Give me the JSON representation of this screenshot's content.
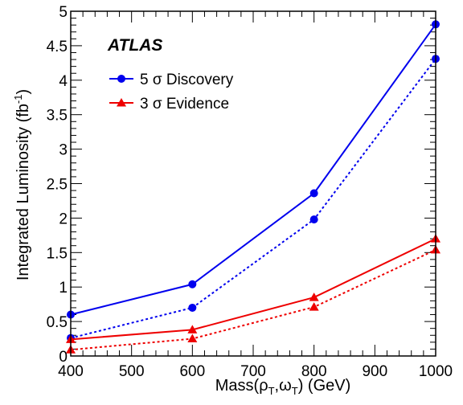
{
  "chart_data": {
    "type": "line",
    "annotation": "ATLAS",
    "xlabel": {
      "base": "Mass(",
      "rho": "ρ",
      "sub1": "T",
      "comma": ",",
      "omega": "ω",
      "sub2": "T",
      "tail": ") (GeV)"
    },
    "ylabel": {
      "base": "Integrated Luminosity (fb",
      "sup": "-1",
      "tail": ")"
    },
    "xlim": [
      400,
      1000
    ],
    "ylim": [
      0,
      5
    ],
    "xticks": [
      "400",
      "500",
      "600",
      "700",
      "800",
      "900",
      "1000"
    ],
    "yticks": [
      "0",
      "0.5",
      "1",
      "1.5",
      "2",
      "2.5",
      "3",
      "3.5",
      "4",
      "4.5",
      "5"
    ],
    "legend": {
      "placement": "top-left",
      "entries": [
        {
          "label": "5 σ Discovery",
          "color": "#0000ee",
          "marker": "circle"
        },
        {
          "label": "3 σ Evidence",
          "color": "#ee0000",
          "marker": "triangle"
        }
      ]
    },
    "series": [
      {
        "name": "5 σ Discovery",
        "color": "#0000ee",
        "marker": "circle",
        "linestyle": "solid",
        "x": [
          400,
          600,
          800,
          1000
        ],
        "y": [
          0.6,
          1.04,
          2.36,
          4.81
        ]
      },
      {
        "color": "#0000ee",
        "marker": "circle",
        "linestyle": "dashed",
        "x": [
          400,
          600,
          800,
          1000
        ],
        "y": [
          0.26,
          0.7,
          1.98,
          4.31
        ]
      },
      {
        "name": "3 σ Evidence",
        "color": "#ee0000",
        "marker": "triangle",
        "linestyle": "solid",
        "x": [
          400,
          600,
          800,
          1000
        ],
        "y": [
          0.24,
          0.38,
          0.85,
          1.7
        ]
      },
      {
        "color": "#ee0000",
        "marker": "triangle",
        "linestyle": "dashed",
        "x": [
          400,
          600,
          800,
          1000
        ],
        "y": [
          0.09,
          0.25,
          0.71,
          1.54
        ]
      }
    ]
  }
}
